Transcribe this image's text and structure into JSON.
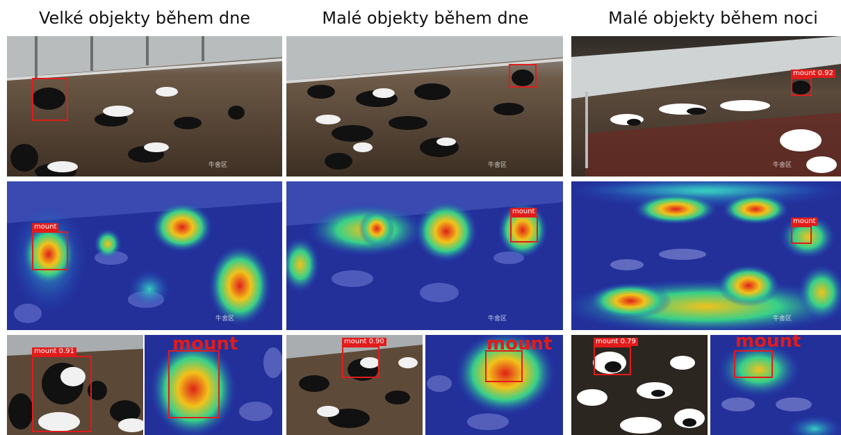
{
  "columns": [
    {
      "title": "Velké objekty během dne"
    },
    {
      "title": "Malé objekty během dne"
    },
    {
      "title": "Malé objekty během noci"
    }
  ],
  "detections": {
    "label": "mount",
    "col1_bottom_label": "mount 0.91",
    "col2_bottom_label": "mount 0.90",
    "col3_bottom_label": "mount 0.79",
    "col3_top_label": "mount 0.92"
  },
  "watermark": "牛舍区",
  "icons": {
    "scene": "barn-photo-image",
    "heatmap": "attention-heatmap-image"
  }
}
